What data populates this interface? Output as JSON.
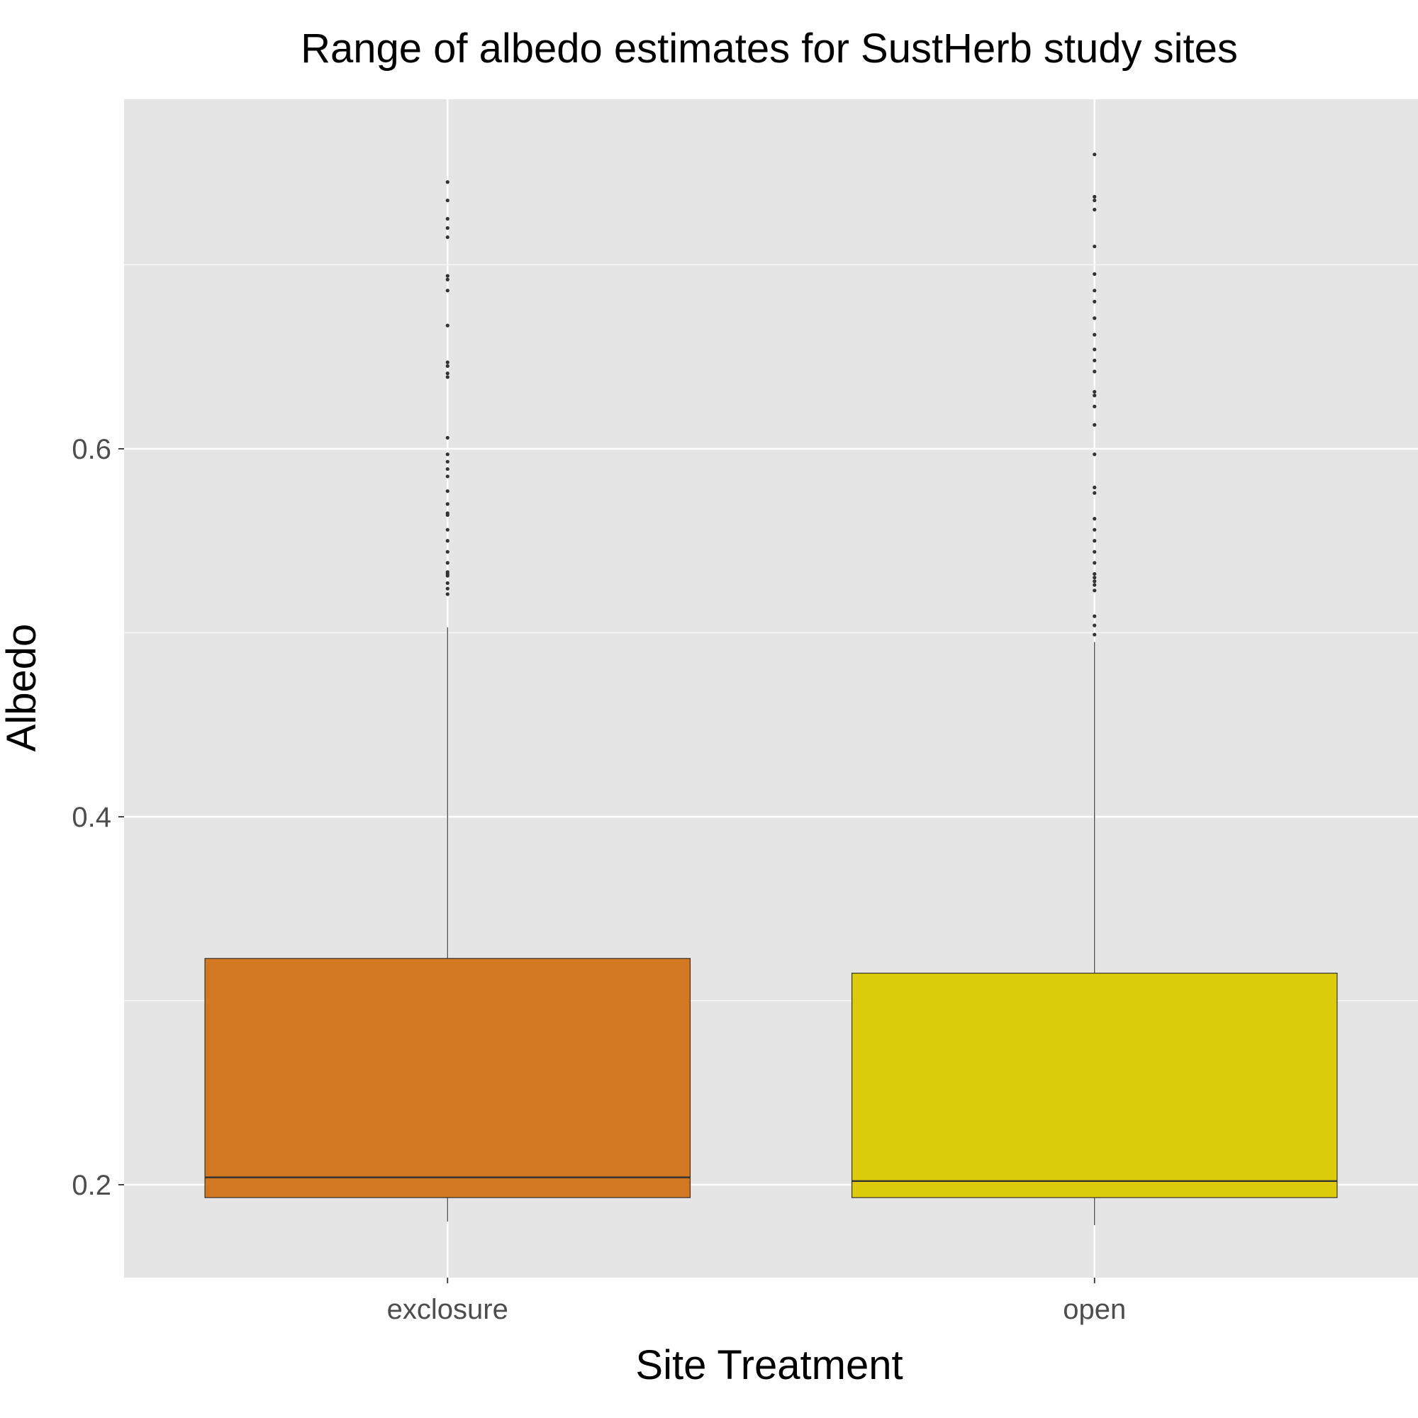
{
  "chart_data": {
    "type": "box",
    "title": "Range of albedo estimates for SustHerb study sites",
    "xlabel": "Site Treatment",
    "ylabel": "Albedo",
    "categories": [
      "exclosure",
      "open"
    ],
    "y_ticks": [
      0.2,
      0.4,
      0.6
    ],
    "y_tick_labels": [
      "0.2",
      "0.4",
      "0.6"
    ],
    "ylim": [
      0.15,
      0.79
    ],
    "grid": true,
    "colors": {
      "panel": "#e5e5e5",
      "grid": "#ffffff",
      "outline": "#333333",
      "tick_text": "#4d4d4d"
    },
    "boxes": [
      {
        "category": "exclosure",
        "fill": "#d27821",
        "lower_whisker": 0.18,
        "q1": 0.193,
        "median": 0.204,
        "q3": 0.323,
        "upper_whisker": 0.503,
        "outliers": [
          0.521,
          0.524,
          0.527,
          0.531,
          0.532,
          0.533,
          0.538,
          0.544,
          0.55,
          0.556,
          0.564,
          0.565,
          0.57,
          0.577,
          0.585,
          0.589,
          0.593,
          0.597,
          0.606,
          0.639,
          0.641,
          0.645,
          0.647,
          0.667,
          0.686,
          0.692,
          0.694,
          0.715,
          0.72,
          0.725,
          0.735,
          0.745
        ]
      },
      {
        "category": "open",
        "fill": "#dbcb0a",
        "lower_whisker": 0.178,
        "q1": 0.193,
        "median": 0.202,
        "q3": 0.315,
        "upper_whisker": 0.495,
        "outliers": [
          0.499,
          0.504,
          0.509,
          0.523,
          0.526,
          0.528,
          0.53,
          0.532,
          0.538,
          0.544,
          0.55,
          0.556,
          0.562,
          0.576,
          0.579,
          0.597,
          0.613,
          0.623,
          0.629,
          0.631,
          0.642,
          0.648,
          0.654,
          0.662,
          0.671,
          0.68,
          0.686,
          0.695,
          0.71,
          0.73,
          0.735,
          0.737,
          0.76
        ]
      }
    ]
  }
}
